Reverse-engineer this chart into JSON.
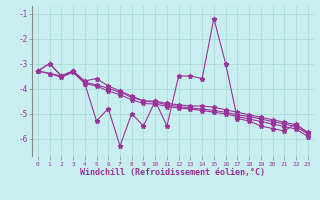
{
  "x": [
    0,
    1,
    2,
    3,
    4,
    5,
    6,
    7,
    8,
    9,
    10,
    11,
    12,
    13,
    14,
    15,
    16,
    17,
    18,
    19,
    20,
    21,
    22,
    23
  ],
  "line1": [
    -3.3,
    -3.0,
    -3.5,
    -3.3,
    -3.8,
    -5.3,
    -4.8,
    -6.3,
    -5.0,
    -5.5,
    -4.5,
    -5.5,
    -3.5,
    -3.5,
    -3.6,
    -1.2,
    -3.0,
    -5.2,
    -5.3,
    -5.5,
    -5.6,
    -5.7,
    -5.4,
    -5.8
  ],
  "line2": [
    -3.3,
    -3.0,
    -3.5,
    -3.3,
    -3.7,
    -3.6,
    -3.9,
    -4.1,
    -4.3,
    -4.5,
    -4.5,
    -4.6,
    -4.65,
    -4.7,
    -4.7,
    -4.75,
    -4.85,
    -4.95,
    -5.05,
    -5.15,
    -5.25,
    -5.35,
    -5.45,
    -5.75
  ],
  "line3": [
    -3.3,
    -3.4,
    -3.5,
    -3.3,
    -3.75,
    -3.85,
    -4.0,
    -4.15,
    -4.35,
    -4.5,
    -4.55,
    -4.65,
    -4.72,
    -4.78,
    -4.82,
    -4.88,
    -4.95,
    -5.05,
    -5.12,
    -5.22,
    -5.32,
    -5.42,
    -5.52,
    -5.82
  ],
  "line4": [
    -3.3,
    -3.4,
    -3.55,
    -3.35,
    -3.8,
    -3.9,
    -4.1,
    -4.25,
    -4.45,
    -4.6,
    -4.62,
    -4.72,
    -4.78,
    -4.82,
    -4.88,
    -4.95,
    -5.02,
    -5.12,
    -5.22,
    -5.32,
    -5.42,
    -5.52,
    -5.62,
    -5.92
  ],
  "line_color": "#993399",
  "bg_color": "#c8eef0",
  "grid_color": "#aaddd8",
  "xlabel": "Windchill (Refroidissement éolien,°C)",
  "xlim": [
    -0.5,
    23.5
  ],
  "ylim": [
    -6.7,
    -0.7
  ],
  "yticks": [
    -6,
    -5,
    -4,
    -3,
    -2,
    -1
  ],
  "xticks": [
    0,
    1,
    2,
    3,
    4,
    5,
    6,
    7,
    8,
    9,
    10,
    11,
    12,
    13,
    14,
    15,
    16,
    17,
    18,
    19,
    20,
    21,
    22,
    23
  ]
}
